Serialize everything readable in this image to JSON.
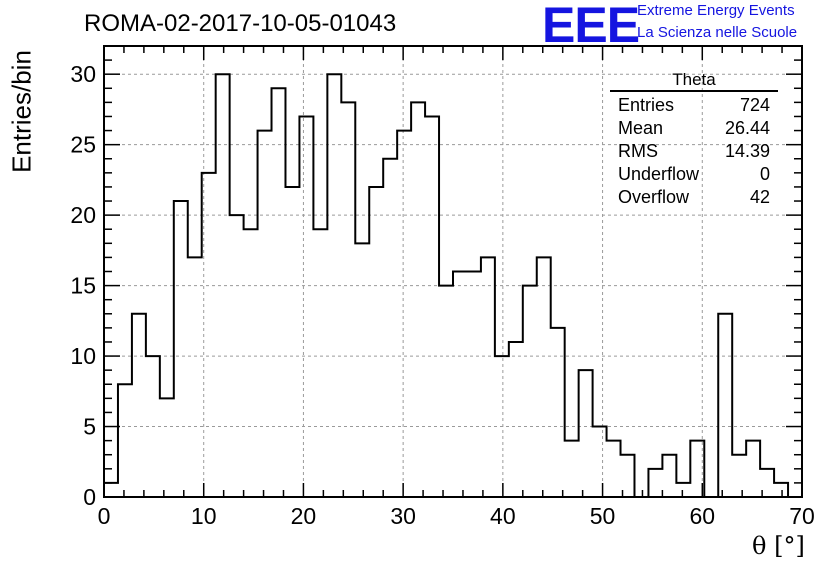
{
  "header": {
    "title": "ROMA-02-2017-10-05-01043",
    "logo_mark": "EEE",
    "logo_line_1": "Extreme Energy Events",
    "logo_line_2": "La Scienza nelle Scuole"
  },
  "stats_box": {
    "title": "Theta",
    "rows": [
      {
        "label": "Entries",
        "value": "724"
      },
      {
        "label": "Mean",
        "value": "26.44"
      },
      {
        "label": "RMS",
        "value": "14.39"
      },
      {
        "label": "Underflow",
        "value": "0"
      },
      {
        "label": "Overflow",
        "value": "42"
      }
    ]
  },
  "colors": {
    "logo": "#1515e0",
    "line": "#000000",
    "grid": "#9a9a9a"
  },
  "chart_data": {
    "type": "bar",
    "style": "step-histogram",
    "xlabel": "θ [°]",
    "ylabel": "Entries/bin",
    "xlim": [
      0,
      70
    ],
    "ylim": [
      0,
      32
    ],
    "bin_width": 1.4,
    "x_ticks": [
      0,
      10,
      20,
      30,
      40,
      50,
      60,
      70
    ],
    "y_ticks": [
      0,
      5,
      10,
      15,
      20,
      25,
      30
    ],
    "grid": true,
    "legend": "top-right",
    "values": [
      1,
      8,
      13,
      10,
      7,
      21,
      17,
      23,
      30,
      20,
      19,
      26,
      29,
      22,
      27,
      19,
      30,
      28,
      18,
      22,
      24,
      26,
      28,
      27,
      15,
      16,
      16,
      17,
      10,
      11,
      15,
      17,
      12,
      4,
      9,
      5,
      4,
      3,
      0,
      2,
      3,
      1,
      4,
      0,
      13,
      3,
      4,
      2,
      1,
      0
    ]
  }
}
